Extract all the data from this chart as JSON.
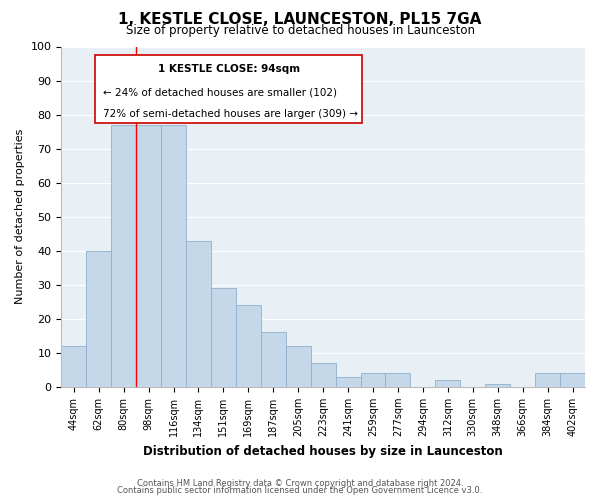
{
  "title": "1, KESTLE CLOSE, LAUNCESTON, PL15 7GA",
  "subtitle": "Size of property relative to detached houses in Launceston",
  "xlabel": "Distribution of detached houses by size in Launceston",
  "ylabel": "Number of detached properties",
  "categories": [
    "44sqm",
    "62sqm",
    "80sqm",
    "98sqm",
    "116sqm",
    "134sqm",
    "151sqm",
    "169sqm",
    "187sqm",
    "205sqm",
    "223sqm",
    "241sqm",
    "259sqm",
    "277sqm",
    "294sqm",
    "312sqm",
    "330sqm",
    "348sqm",
    "366sqm",
    "384sqm",
    "402sqm"
  ],
  "values": [
    12,
    40,
    77,
    77,
    77,
    43,
    29,
    24,
    16,
    12,
    7,
    3,
    4,
    4,
    0,
    2,
    0,
    1,
    0,
    4,
    4
  ],
  "bar_color": "#c5d8ea",
  "bar_edge_color": "#8fb0cc",
  "marker_label": "1 KESTLE CLOSE: 94sqm",
  "annotation_line1": "← 24% of detached houses are smaller (102)",
  "annotation_line2": "72% of semi-detached houses are larger (309) →",
  "ylim": [
    0,
    100
  ],
  "red_line_x": 3,
  "footnote1": "Contains HM Land Registry data © Crown copyright and database right 2024.",
  "footnote2": "Contains public sector information licensed under the Open Government Licence v3.0.",
  "grid_color": "#d0dce8",
  "bg_color": "#e8eff5"
}
